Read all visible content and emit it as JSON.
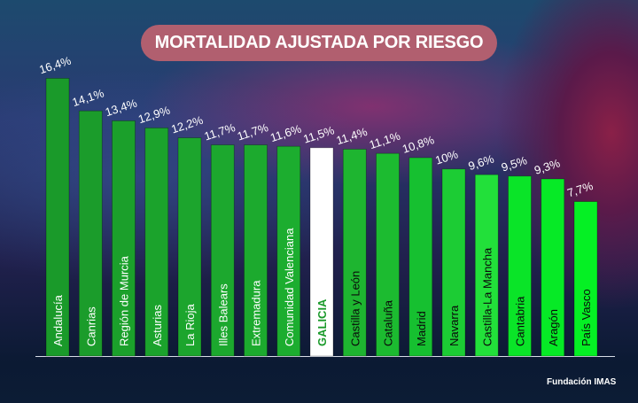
{
  "chart_data": {
    "type": "bar",
    "title": "MORTALIDAD AJUSTADA POR RIESGO",
    "categories": [
      "Andalucía",
      "Canrias",
      "Región de Murcia",
      "Asturias",
      "La Rioja",
      "Illes Balears",
      "Extremadura",
      "Comunidad Valenciana",
      "GALICIA",
      "Castilla y León",
      "Cataluña",
      "Madrid",
      "Navarra",
      "Castilla-La Mancha",
      "Cantabria",
      "Aragón",
      "País Vasco"
    ],
    "values": [
      16.4,
      14.1,
      13.4,
      12.9,
      12.2,
      11.7,
      11.7,
      11.6,
      11.5,
      11.4,
      11.1,
      10.8,
      10.0,
      9.6,
      9.5,
      9.3,
      7.7
    ],
    "value_labels": [
      "16,4%",
      "14,1%",
      "13,4%",
      "12,9%",
      "12,2%",
      "11,7%",
      "11,7%",
      "11,6%",
      "11,5%",
      "11,4%",
      "11,1%",
      "10,8%",
      "10%",
      "9,6%",
      "9,5%",
      "9,3%",
      "7,7%"
    ],
    "unit": "%",
    "highlight": "GALICIA",
    "colors": {
      "bars": [
        "#1a9a2a",
        "#1b9c2b",
        "#1ba02b",
        "#1ba32c",
        "#1ca52d",
        "#1ca82e",
        "#1caa2e",
        "#1cad2f",
        "#ffffff",
        "#1eb530",
        "#1cbb30",
        "#16c030",
        "#1ccc34",
        "#22e03a",
        "#0ae428",
        "#06ea26",
        "#05f024"
      ],
      "highlight_text": "#1a9a2a",
      "title_background": "#b15f6f"
    },
    "xlabel": "",
    "ylabel": "",
    "grid": false,
    "legend": "none"
  },
  "footer": {
    "credit": "Fundación IMAS"
  }
}
